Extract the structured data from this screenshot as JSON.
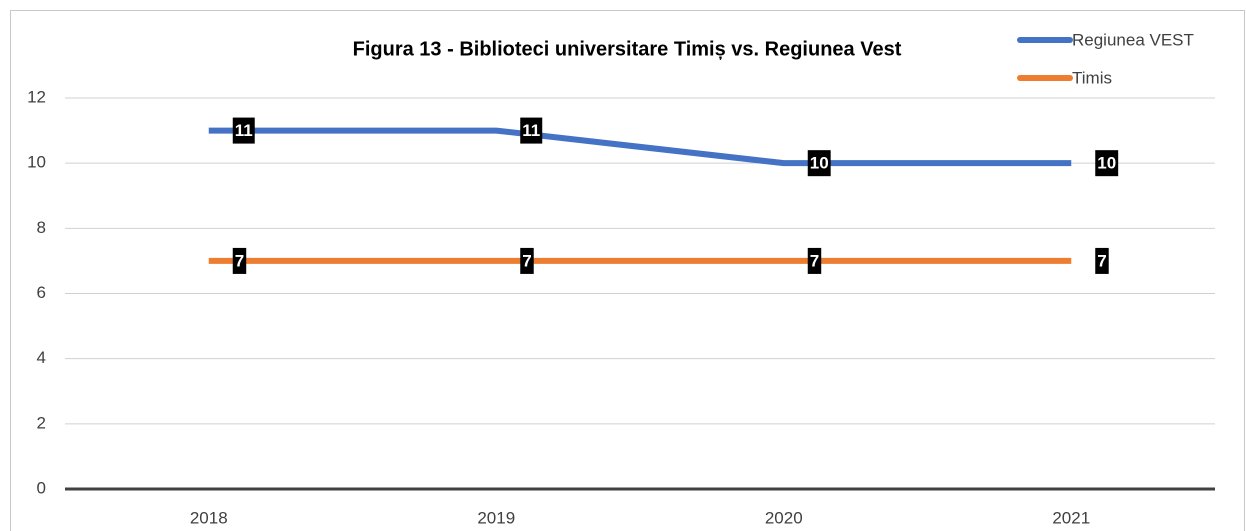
{
  "chart_data": {
    "type": "line",
    "title": "Figura 13 - Biblioteci universitare Timiș vs. Regiunea Vest",
    "categories": [
      "2018",
      "2019",
      "2020",
      "2021"
    ],
    "series": [
      {
        "name": "Regiunea VEST",
        "color": "#4472c4",
        "values": [
          11,
          11,
          10,
          10
        ]
      },
      {
        "name": "Timis",
        "color": "#ed7d31",
        "values": [
          7,
          7,
          7,
          7
        ]
      }
    ],
    "ylim": [
      0,
      12
    ],
    "yticks": [
      0,
      2,
      4,
      6,
      8,
      10,
      12
    ],
    "grid": true,
    "legend": "top-right",
    "data_labels": true
  }
}
